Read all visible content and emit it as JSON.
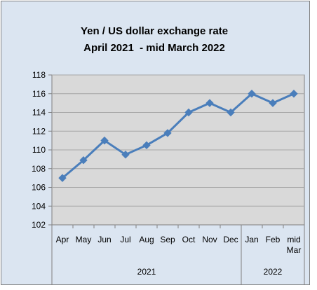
{
  "chart_data": {
    "type": "line",
    "title": "Yen / US dollar exchange rate",
    "subtitle": "April 2021  - mid March 2022",
    "categories": [
      "Apr",
      "May",
      "Jun",
      "Jul",
      "Aug",
      "Sep",
      "Oct",
      "Nov",
      "Dec",
      "Jan",
      "Feb",
      "mid Mar"
    ],
    "year_groups": [
      {
        "label": "2021",
        "count": 9
      },
      {
        "label": "2022",
        "count": 3
      }
    ],
    "series": [
      {
        "values": [
          107.0,
          108.9,
          111.0,
          109.5,
          110.5,
          111.8,
          114.0,
          115.0,
          114.0,
          116.0,
          115.0,
          116.0
        ]
      }
    ],
    "ylim": [
      102,
      118
    ],
    "yticks": [
      102,
      104,
      106,
      108,
      110,
      112,
      114,
      116,
      118
    ],
    "grid": true,
    "colors": {
      "line": "#4a7ebb",
      "marker": "#4a7ebb",
      "plot_area": "#d9d9d9",
      "chart_area": "#dbe5f1",
      "gridline": "#a6a6a6",
      "axis": "#808080",
      "border": "#7f7f7f"
    }
  }
}
